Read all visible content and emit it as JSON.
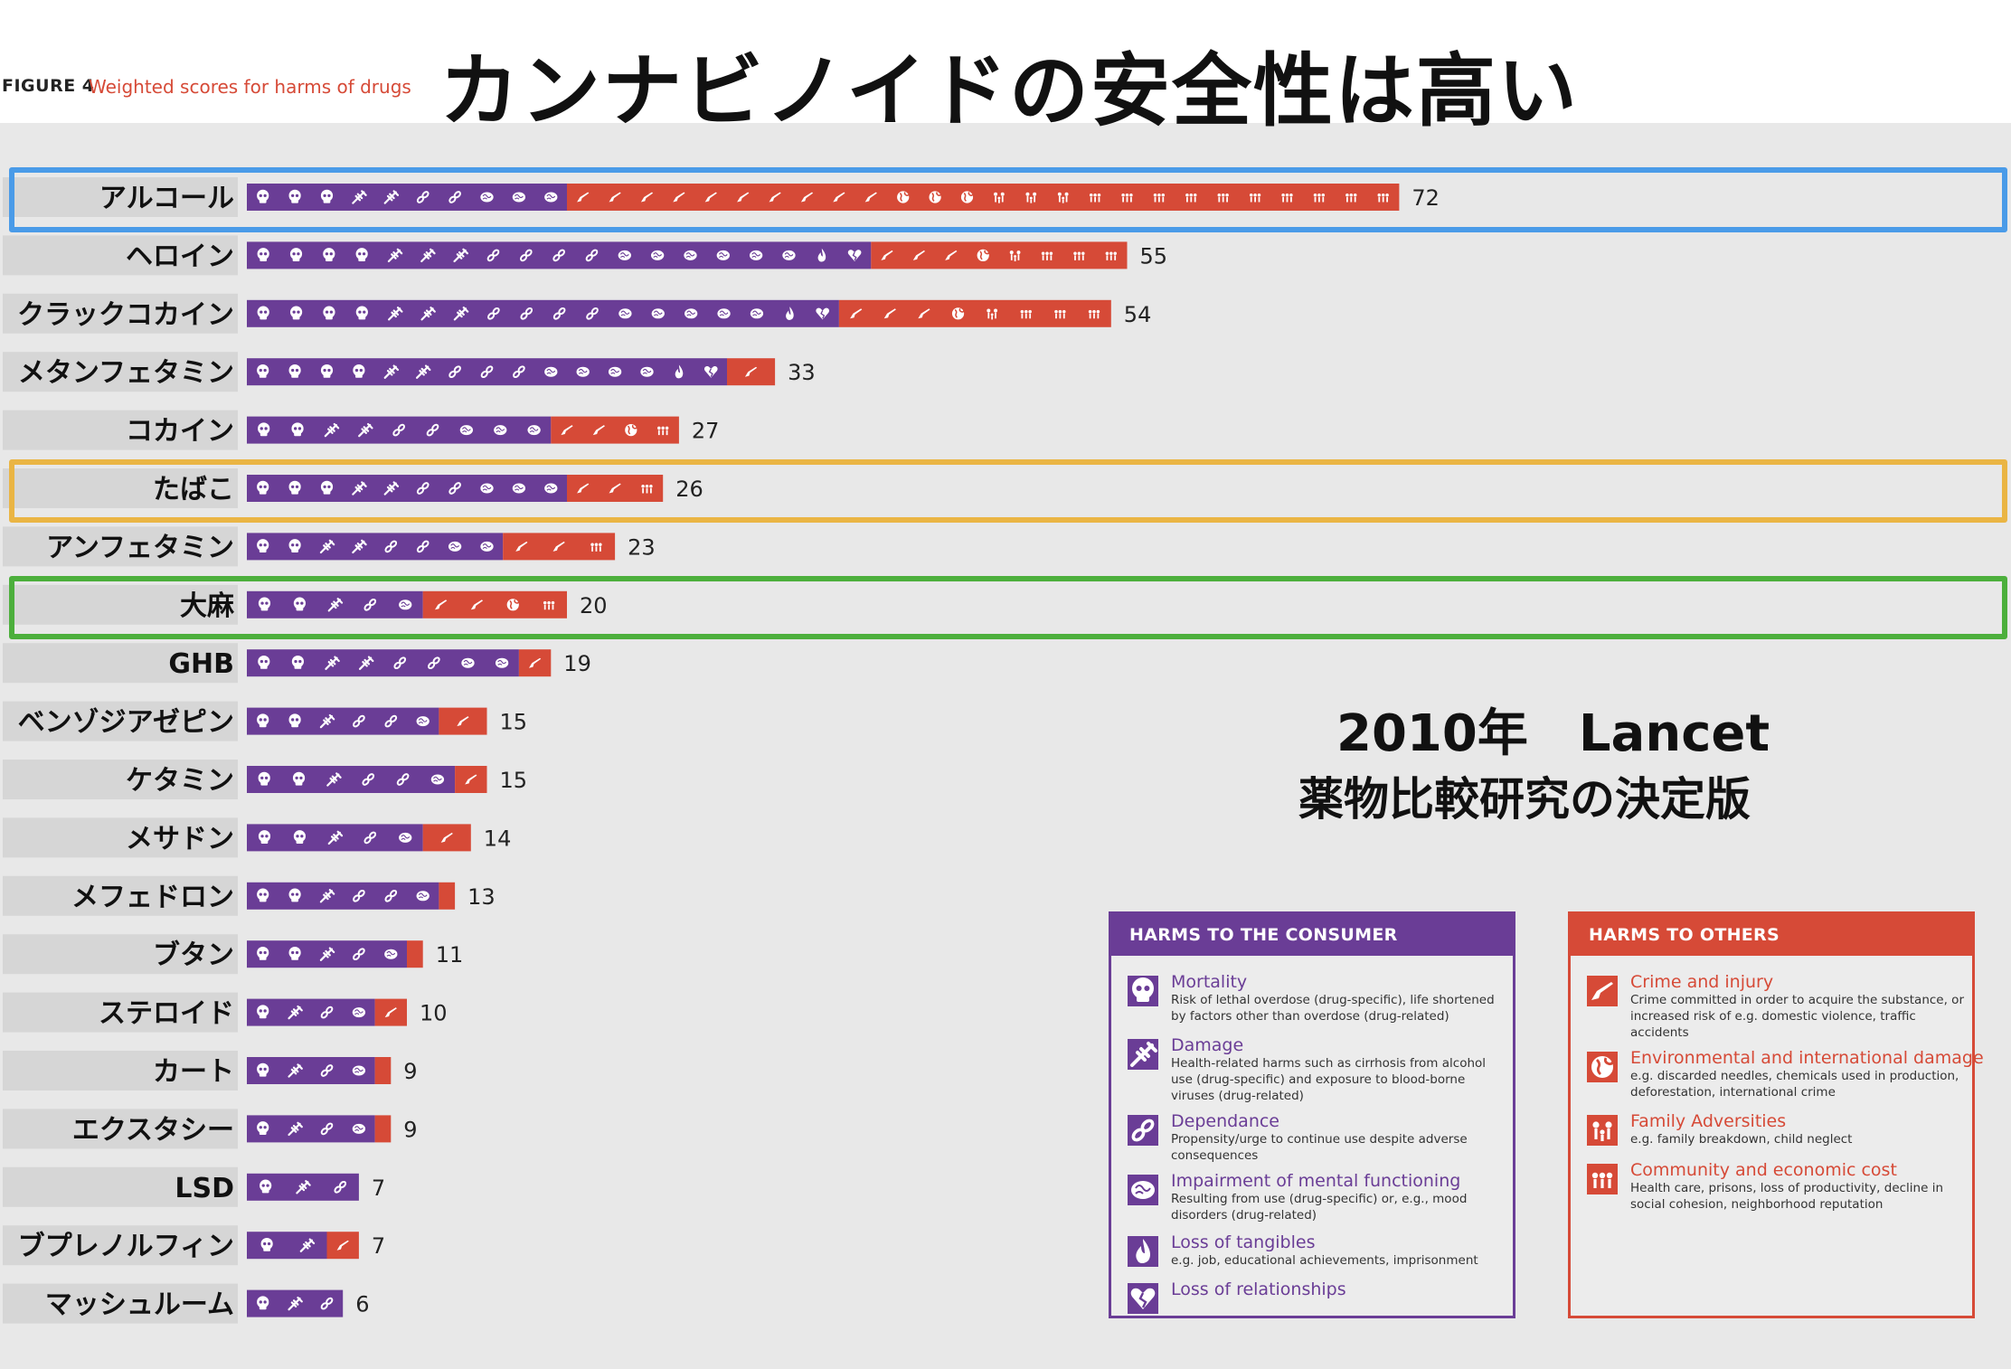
{
  "header": {
    "figure_label": "FIGURE 4",
    "figure_title": "Weighted scores for harms of drugs",
    "headline": "カンナビノイドの安全性は高い"
  },
  "note": {
    "line1": "2010年　Lancet",
    "line2": "薬物比較研究の決定版"
  },
  "colors": {
    "consumer": "#6a3d96",
    "others": "#d64a37",
    "highlight_alcohol": "#4a9be8",
    "highlight_tobacco": "#eab544",
    "highlight_cannabis": "#4caf3c"
  },
  "chart_data": {
    "type": "bar",
    "orientation": "horizontal",
    "stacked": true,
    "xlim": [
      0,
      72
    ],
    "categories": [
      "アルコール",
      "ヘロイン",
      "クラックコカイン",
      "メタンフェタミン",
      "コカイン",
      "たばこ",
      "アンフェタミン",
      "大麻",
      "GHB",
      "ベンゾジアゼピン",
      "ケタミン",
      "メサドン",
      "メフェドロン",
      "ブタン",
      "ステロイド",
      "カート",
      "エクスタシー",
      "LSD",
      "ブプレノルフィン",
      "マッシュルーム"
    ],
    "totals": [
      72,
      55,
      54,
      33,
      27,
      26,
      23,
      20,
      19,
      15,
      15,
      14,
      13,
      11,
      10,
      9,
      9,
      7,
      7,
      6
    ],
    "series": [
      {
        "name": "HARMS TO THE CONSUMER",
        "color": "#6a3d96",
        "values": [
          20,
          39,
          37,
          30,
          19,
          20,
          16,
          11,
          17,
          12,
          13,
          11,
          12,
          10,
          8,
          8,
          8,
          7,
          5,
          6
        ]
      },
      {
        "name": "HARMS TO OTHERS",
        "color": "#d64a37",
        "values": [
          52,
          16,
          17,
          3,
          8,
          6,
          7,
          9,
          2,
          3,
          2,
          3,
          1,
          1,
          2,
          1,
          1,
          0,
          2,
          0
        ]
      }
    ],
    "highlighted": [
      "アルコール",
      "たばこ",
      "大麻"
    ]
  },
  "legend_consumer": {
    "title": "HARMS TO THE CONSUMER",
    "items": [
      {
        "name": "Mortality",
        "icon": "skull-icon",
        "desc": "Risk of lethal overdose (drug-specific), life shortened by factors other than overdose (drug-related)"
      },
      {
        "name": "Damage",
        "icon": "needle-icon",
        "desc": "Health-related harms such as cirrhosis from alcohol use (drug-specific) and exposure to blood-borne viruses (drug-related)"
      },
      {
        "name": "Dependance",
        "icon": "chain-icon",
        "desc": "Propensity/urge to continue use despite adverse consequences"
      },
      {
        "name": "Impairment of mental functioning",
        "icon": "brain-icon",
        "desc": "Resulting from use (drug-specific) or, e.g., mood disorders (drug-related)"
      },
      {
        "name": "Loss of tangibles",
        "icon": "flame-icon",
        "desc": "e.g. job, educational achievements, imprisonment"
      },
      {
        "name": "Loss of relationships",
        "icon": "broken-heart-icon",
        "desc": ""
      }
    ]
  },
  "legend_others": {
    "title": "HARMS TO OTHERS",
    "items": [
      {
        "name": "Crime and injury",
        "icon": "gun-icon",
        "desc": "Crime committed in order to acquire the substance, or increased risk of e.g. domestic violence, traffic accidents"
      },
      {
        "name": "Environmental and international damage",
        "icon": "globe-icon",
        "desc": "e.g. discarded needles, chemicals used in production, deforestation, international crime"
      },
      {
        "name": "Family Adversities",
        "icon": "family-icon",
        "desc": "e.g. family breakdown, child neglect"
      },
      {
        "name": "Community and economic cost",
        "icon": "community-icon",
        "desc": "Health care, prisons, loss of productivity, decline in social cohesion, neighborhood reputation"
      }
    ]
  }
}
